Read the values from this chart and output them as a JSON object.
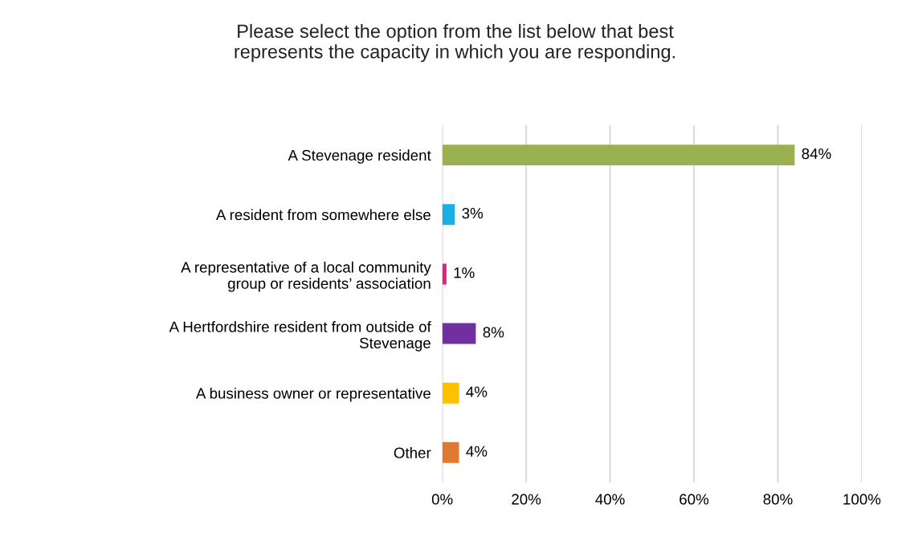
{
  "chart_data": {
    "type": "bar",
    "orientation": "horizontal",
    "title": "Please select the option from the list below that best\nrepresents the capacity in which you are responding.",
    "categories": [
      "A Stevenage resident",
      "A resident from somewhere else",
      "A representative of a local community\ngroup or residents’ association",
      "A Hertfordshire resident from outside of\nStevenage",
      "A business owner or representative",
      "Other"
    ],
    "values": [
      84,
      3,
      1,
      8,
      4,
      4
    ],
    "colors": [
      "#9bb050",
      "#1aafe6",
      "#e0237a",
      "#7030a0",
      "#ffc000",
      "#e07a30"
    ],
    "value_labels": [
      "84%",
      "3%",
      "1%",
      "8%",
      "4%",
      "4%"
    ],
    "xlim": [
      0,
      100
    ],
    "xticks": [
      {
        "value": 0,
        "label": "0%"
      },
      {
        "value": 20,
        "label": "20%"
      },
      {
        "value": 40,
        "label": "40%"
      },
      {
        "value": 60,
        "label": "60%"
      },
      {
        "value": 80,
        "label": "80%"
      },
      {
        "value": 100,
        "label": "100%"
      }
    ],
    "grid": "x"
  }
}
